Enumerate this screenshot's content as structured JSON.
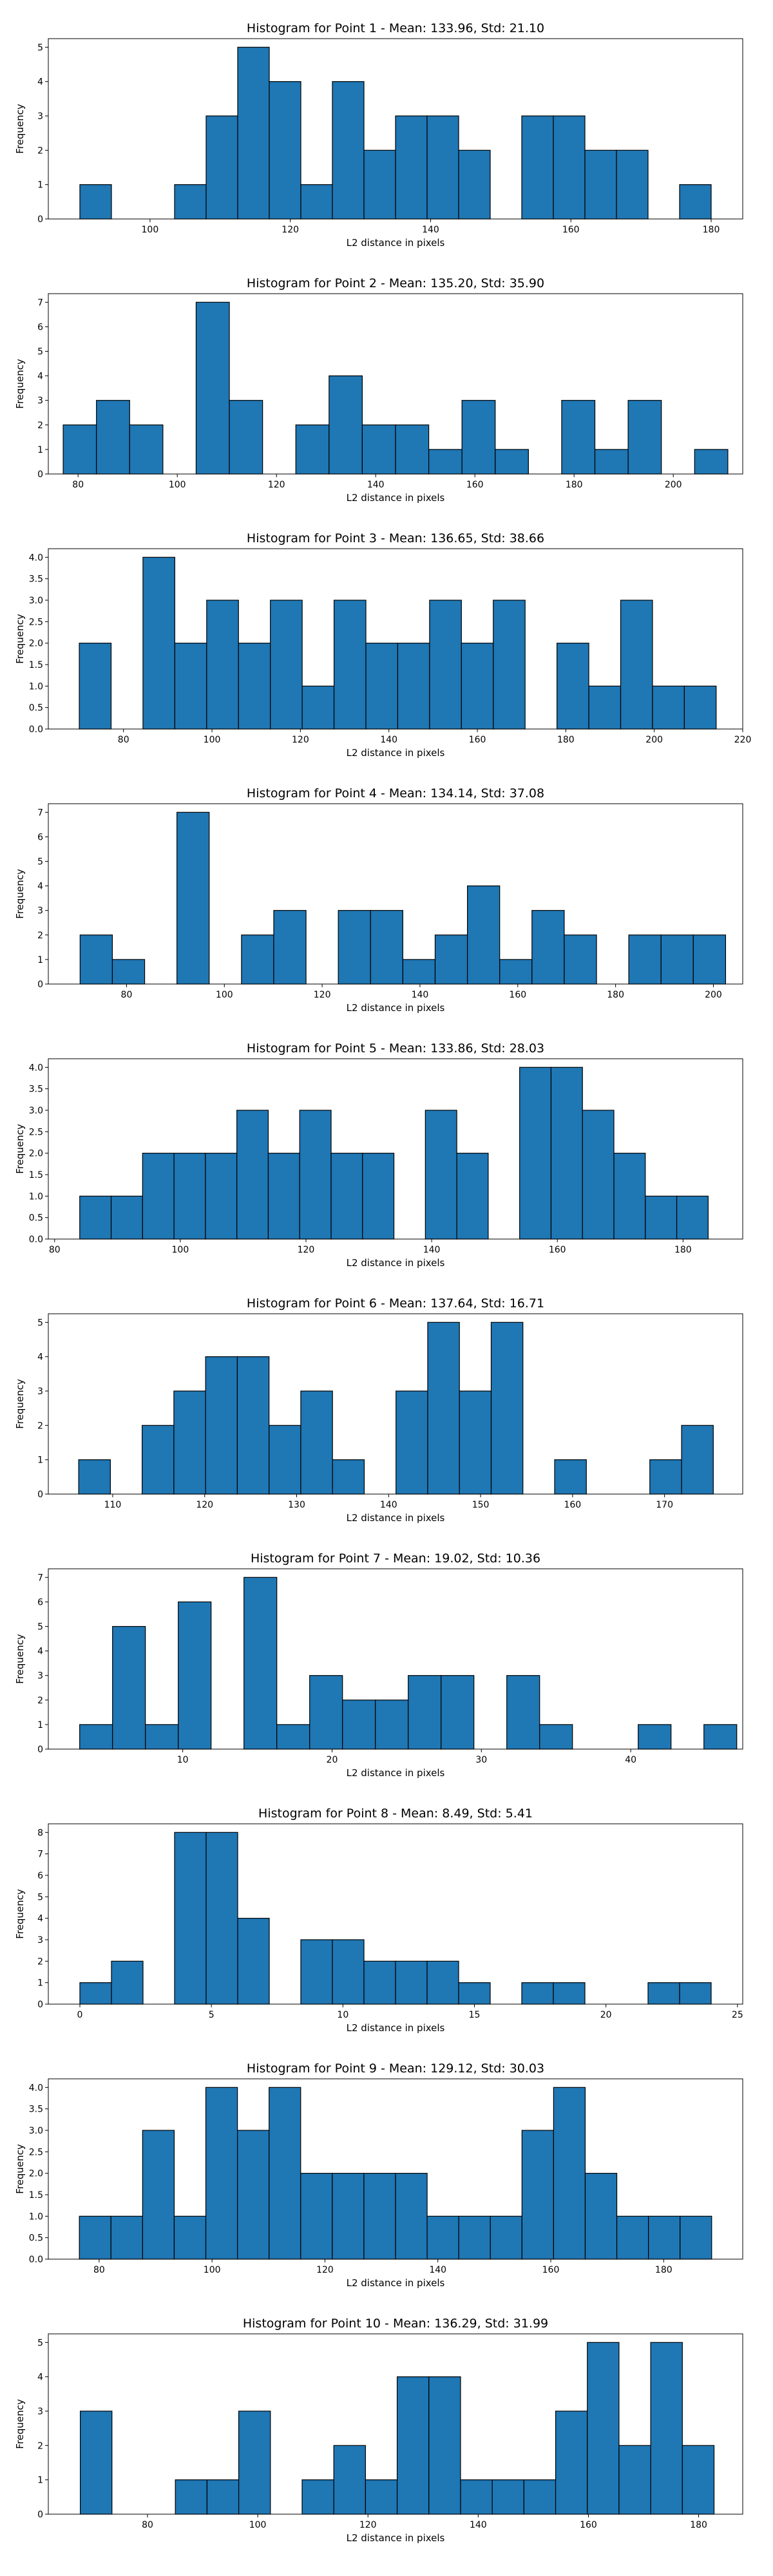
{
  "chart_data": [
    {
      "type": "bar",
      "title": "Histogram for Point 1 - Mean: 133.96, Std: 21.10",
      "xlabel": "L2 distance in pixels",
      "ylabel": "Frequency",
      "xlim": [
        85.5,
        184.5
      ],
      "ylim": [
        0,
        5.25
      ],
      "xticks": [
        100,
        120,
        140,
        160,
        180
      ],
      "yticks": [
        0,
        1,
        2,
        3,
        4,
        5
      ],
      "bin_start": 90.0,
      "bin_width": 4.5,
      "values": [
        1,
        0,
        0,
        1,
        3,
        5,
        4,
        1,
        4,
        2,
        3,
        3,
        2,
        0,
        3,
        3,
        2,
        2,
        0,
        1
      ],
      "color": "#1f77b4"
    },
    {
      "type": "bar",
      "title": "Histogram for Point 2 - Mean: 135.20, Std: 35.90",
      "xlabel": "L2 distance in pixels",
      "ylabel": "Frequency",
      "xlim": [
        74.0,
        214.0
      ],
      "ylim": [
        0,
        7.35
      ],
      "xticks": [
        80,
        100,
        120,
        140,
        160,
        180,
        200
      ],
      "yticks": [
        0,
        1,
        2,
        3,
        4,
        5,
        6,
        7
      ],
      "bin_start": 77.0,
      "bin_width": 6.7,
      "values": [
        2,
        3,
        2,
        0,
        7,
        3,
        0,
        2,
        4,
        2,
        2,
        1,
        3,
        1,
        0,
        3,
        1,
        3,
        0,
        1
      ],
      "color": "#1f77b4"
    },
    {
      "type": "bar",
      "title": "Histogram for Point 3 - Mean: 136.65, Std: 38.66",
      "xlabel": "L2 distance in pixels",
      "ylabel": "Frequency",
      "xlim": [
        63.0,
        220.0
      ],
      "ylim": [
        0,
        4.2
      ],
      "xticks": [
        80,
        100,
        120,
        140,
        160,
        180,
        200,
        220
      ],
      "yticks": [
        0.0,
        0.5,
        1.0,
        1.5,
        2.0,
        2.5,
        3.0,
        3.5,
        4.0
      ],
      "bin_start": 70.0,
      "bin_width": 7.2,
      "values": [
        2,
        0,
        4,
        2,
        3,
        2,
        3,
        1,
        3,
        2,
        2,
        3,
        2,
        3,
        0,
        2,
        1,
        3,
        1,
        1
      ],
      "color": "#1f77b4"
    },
    {
      "type": "bar",
      "title": "Histogram for Point 4 - Mean: 134.14, Std: 37.08",
      "xlabel": "L2 distance in pixels",
      "ylabel": "Frequency",
      "xlim": [
        64.0,
        206.0
      ],
      "ylim": [
        0,
        7.35
      ],
      "xticks": [
        80,
        100,
        120,
        140,
        160,
        180,
        200
      ],
      "yticks": [
        0,
        1,
        2,
        3,
        4,
        5,
        6,
        7
      ],
      "bin_start": 70.5,
      "bin_width": 6.6,
      "values": [
        2,
        1,
        0,
        7,
        0,
        2,
        3,
        0,
        3,
        3,
        1,
        2,
        4,
        1,
        3,
        2,
        0,
        2,
        2,
        2
      ],
      "color": "#1f77b4"
    },
    {
      "type": "bar",
      "title": "Histogram for Point 5 - Mean: 133.86, Std: 28.03",
      "xlabel": "L2 distance in pixels",
      "ylabel": "Frequency",
      "xlim": [
        79.0,
        189.5
      ],
      "ylim": [
        0,
        4.2
      ],
      "xticks": [
        80,
        100,
        120,
        140,
        160,
        180
      ],
      "yticks": [
        0.0,
        0.5,
        1.0,
        1.5,
        2.0,
        2.5,
        3.0,
        3.5,
        4.0
      ],
      "bin_start": 84.0,
      "bin_width": 5.0,
      "values": [
        1,
        1,
        2,
        2,
        2,
        3,
        2,
        3,
        2,
        2,
        0,
        3,
        2,
        0,
        4,
        4,
        3,
        2,
        1,
        1
      ],
      "color": "#1f77b4"
    },
    {
      "type": "bar",
      "title": "Histogram for Point 6 - Mean: 137.64, Std: 16.71",
      "xlabel": "L2 distance in pixels",
      "ylabel": "Frequency",
      "xlim": [
        103.0,
        178.5
      ],
      "ylim": [
        0,
        5.25
      ],
      "xticks": [
        110,
        120,
        130,
        140,
        150,
        160,
        170
      ],
      "yticks": [
        0,
        1,
        2,
        3,
        4,
        5
      ],
      "bin_start": 106.3,
      "bin_width": 3.45,
      "values": [
        1,
        0,
        2,
        3,
        4,
        4,
        2,
        3,
        1,
        0,
        3,
        5,
        3,
        5,
        0,
        1,
        0,
        0,
        1,
        2
      ],
      "color": "#1f77b4"
    },
    {
      "type": "bar",
      "title": "Histogram for Point 7 - Mean: 19.02, Std: 10.36",
      "xlabel": "L2 distance in pixels",
      "ylabel": "Frequency",
      "xlim": [
        1.0,
        47.5
      ],
      "ylim": [
        0,
        7.35
      ],
      "xticks": [
        10,
        20,
        30,
        40
      ],
      "yticks": [
        0,
        1,
        2,
        3,
        4,
        5,
        6,
        7
      ],
      "bin_start": 3.1,
      "bin_width": 2.2,
      "values": [
        1,
        5,
        1,
        6,
        0,
        7,
        1,
        3,
        2,
        2,
        3,
        3,
        0,
        3,
        1,
        0,
        0,
        1,
        0,
        1
      ],
      "color": "#1f77b4"
    },
    {
      "type": "bar",
      "title": "Histogram for Point 8 - Mean: 8.49, Std: 5.41",
      "xlabel": "L2 distance in pixels",
      "ylabel": "Frequency",
      "xlim": [
        -1.2,
        25.2
      ],
      "ylim": [
        0,
        8.4
      ],
      "xticks": [
        0,
        5,
        10,
        15,
        20,
        25
      ],
      "yticks": [
        0,
        1,
        2,
        3,
        4,
        5,
        6,
        7,
        8
      ],
      "bin_start": 0.0,
      "bin_width": 1.2,
      "values": [
        1,
        2,
        0,
        8,
        8,
        4,
        0,
        3,
        3,
        2,
        2,
        2,
        1,
        0,
        1,
        1,
        0,
        0,
        1,
        1
      ],
      "color": "#1f77b4"
    },
    {
      "type": "bar",
      "title": "Histogram for Point 9 - Mean: 129.12, Std: 30.03",
      "xlabel": "L2 distance in pixels",
      "ylabel": "Frequency",
      "xlim": [
        71.0,
        194.0
      ],
      "ylim": [
        0,
        4.2
      ],
      "xticks": [
        80,
        100,
        120,
        140,
        160,
        180
      ],
      "yticks": [
        0.0,
        0.5,
        1.0,
        1.5,
        2.0,
        2.5,
        3.0,
        3.5,
        4.0
      ],
      "bin_start": 76.5,
      "bin_width": 5.6,
      "values": [
        1,
        1,
        3,
        1,
        4,
        3,
        4,
        2,
        2,
        2,
        2,
        1,
        1,
        1,
        3,
        4,
        2,
        1,
        1,
        1
      ],
      "color": "#1f77b4"
    },
    {
      "type": "bar",
      "title": "Histogram for Point 10 - Mean: 136.29, Std: 31.99",
      "xlabel": "L2 distance in pixels",
      "ylabel": "Frequency",
      "xlim": [
        62.0,
        188.0
      ],
      "ylim": [
        0,
        5.25
      ],
      "xticks": [
        80,
        100,
        120,
        140,
        160,
        180
      ],
      "yticks": [
        0,
        1,
        2,
        3,
        4,
        5
      ],
      "bin_start": 67.8,
      "bin_width": 5.75,
      "values": [
        3,
        0,
        0,
        1,
        1,
        3,
        0,
        1,
        2,
        1,
        4,
        4,
        1,
        1,
        1,
        3,
        5,
        2,
        5,
        2
      ],
      "color": "#1f77b4"
    }
  ]
}
